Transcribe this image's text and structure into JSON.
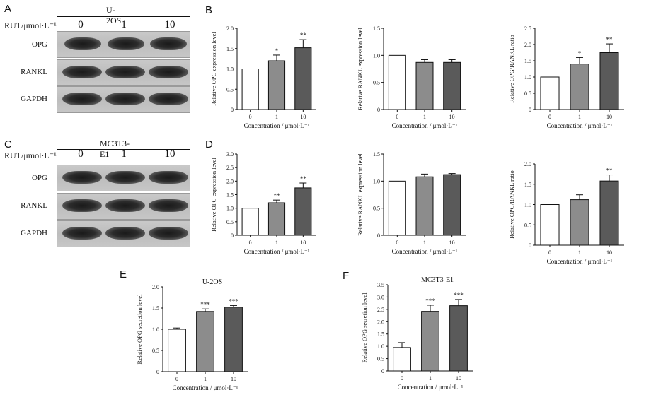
{
  "panel_letters": {
    "a": "A",
    "b": "B",
    "c": "C",
    "d": "D",
    "e": "E",
    "f": "F"
  },
  "blots": [
    {
      "id": "A",
      "cell_line": "U-2OS",
      "treatment_label": "RUT/μmol·L⁻¹",
      "concentrations": [
        "0",
        "1",
        "10"
      ],
      "rows": [
        "OPG",
        "RANKL",
        "GAPDH"
      ]
    },
    {
      "id": "C",
      "cell_line": "MC3T3-E1",
      "treatment_label": "RUT/μmol·L⁻¹",
      "concentrations": [
        "0",
        "1",
        "10"
      ],
      "rows": [
        "OPG",
        "RANKL",
        "GAPDH"
      ]
    }
  ],
  "colors": {
    "bar0": "#ffffff",
    "bar1": "#8c8c8c",
    "bar2": "#5a5a5a",
    "axis": "#111111"
  },
  "chart_data": [
    {
      "id": "B1",
      "type": "bar",
      "title": "",
      "categories": [
        "0",
        "1",
        "10"
      ],
      "values": [
        1.0,
        1.2,
        1.52
      ],
      "errors": [
        0,
        0.14,
        0.2
      ],
      "significance": [
        "",
        "*",
        "**"
      ],
      "xlabel": "Concentration / μmol·L⁻¹",
      "ylabel": "Relative OPG expression level",
      "ylim": [
        0,
        2.0
      ],
      "yticks": [
        "0",
        "0.5",
        "1.0",
        "1.5",
        "2.0"
      ]
    },
    {
      "id": "B2",
      "type": "bar",
      "title": "",
      "categories": [
        "0",
        "1",
        "10"
      ],
      "values": [
        1.0,
        0.87,
        0.87
      ],
      "errors": [
        0,
        0.05,
        0.05
      ],
      "significance": [
        "",
        "",
        ""
      ],
      "xlabel": "Concentration / μmol·L⁻¹",
      "ylabel": "Relative RANKL expression level",
      "ylim": [
        0,
        1.5
      ],
      "yticks": [
        "0",
        "0.5",
        "1.0",
        "1.5"
      ]
    },
    {
      "id": "B3",
      "type": "bar",
      "title": "",
      "categories": [
        "0",
        "1",
        "10"
      ],
      "values": [
        1.0,
        1.4,
        1.75
      ],
      "errors": [
        0,
        0.2,
        0.27
      ],
      "significance": [
        "",
        "*",
        "**"
      ],
      "xlabel": "Concentration / μmol·L⁻¹",
      "ylabel": "Relative OPG/RANKL ratio",
      "ylim": [
        0,
        2.5
      ],
      "yticks": [
        "0",
        "0.5",
        "1.0",
        "1.5",
        "2.0",
        "2.5"
      ]
    },
    {
      "id": "D1",
      "type": "bar",
      "title": "",
      "categories": [
        "0",
        "1",
        "10"
      ],
      "values": [
        1.0,
        1.2,
        1.75
      ],
      "errors": [
        0,
        0.1,
        0.18
      ],
      "significance": [
        "",
        "**",
        "**"
      ],
      "xlabel": "Concentration / μmol·L⁻¹",
      "ylabel": "Relative OPG expression level",
      "ylim": [
        0,
        3.0
      ],
      "yticks": [
        "0",
        "0.5",
        "1.0",
        "1.5",
        "2.0",
        "2.5",
        "3.0"
      ]
    },
    {
      "id": "D2",
      "type": "bar",
      "title": "",
      "categories": [
        "0",
        "1",
        "10"
      ],
      "values": [
        1.0,
        1.08,
        1.12
      ],
      "errors": [
        0,
        0.05,
        0.02
      ],
      "significance": [
        "",
        "",
        ""
      ],
      "xlabel": "Concentration / μmol·L⁻¹",
      "ylabel": "Relative RANKL expression level",
      "ylim": [
        0,
        1.5
      ],
      "yticks": [
        "0",
        "0.5",
        "1.0",
        "1.5"
      ]
    },
    {
      "id": "D3",
      "type": "bar",
      "title": "",
      "categories": [
        "0",
        "1",
        "10"
      ],
      "values": [
        1.0,
        1.12,
        1.58
      ],
      "errors": [
        0,
        0.12,
        0.15
      ],
      "significance": [
        "",
        "",
        "**"
      ],
      "xlabel": "Concentration / μmol·L⁻¹",
      "ylabel": "Relative OPG/RANKL ratio",
      "ylim": [
        0,
        2.0
      ],
      "yticks": [
        "0",
        "0.5",
        "1.0",
        "1.5",
        "2.0"
      ]
    },
    {
      "id": "E",
      "type": "bar",
      "title": "U-2OS",
      "categories": [
        "0",
        "1",
        "10"
      ],
      "values": [
        1.0,
        1.42,
        1.52
      ],
      "errors": [
        0.03,
        0.06,
        0.04
      ],
      "significance": [
        "",
        "***",
        "***"
      ],
      "xlabel": "Concentration / μmol·L⁻¹",
      "ylabel": "Relative OPG secretion level",
      "ylim": [
        0,
        2.0
      ],
      "yticks": [
        "0",
        "0.5",
        "1.0",
        "1.5",
        "2.0"
      ]
    },
    {
      "id": "F",
      "type": "bar",
      "title": "MC3T3-E1",
      "categories": [
        "0",
        "1",
        "10"
      ],
      "values": [
        0.95,
        2.42,
        2.65
      ],
      "errors": [
        0.2,
        0.25,
        0.25
      ],
      "significance": [
        "",
        "***",
        "***"
      ],
      "xlabel": "Concentration / μmol·L⁻¹",
      "ylabel": "Relative OPG secretion level",
      "ylim": [
        0,
        3.5
      ],
      "yticks": [
        "0",
        "0.5",
        "1.0",
        "1.5",
        "2.0",
        "2.5",
        "3.0",
        "3.5"
      ]
    }
  ]
}
